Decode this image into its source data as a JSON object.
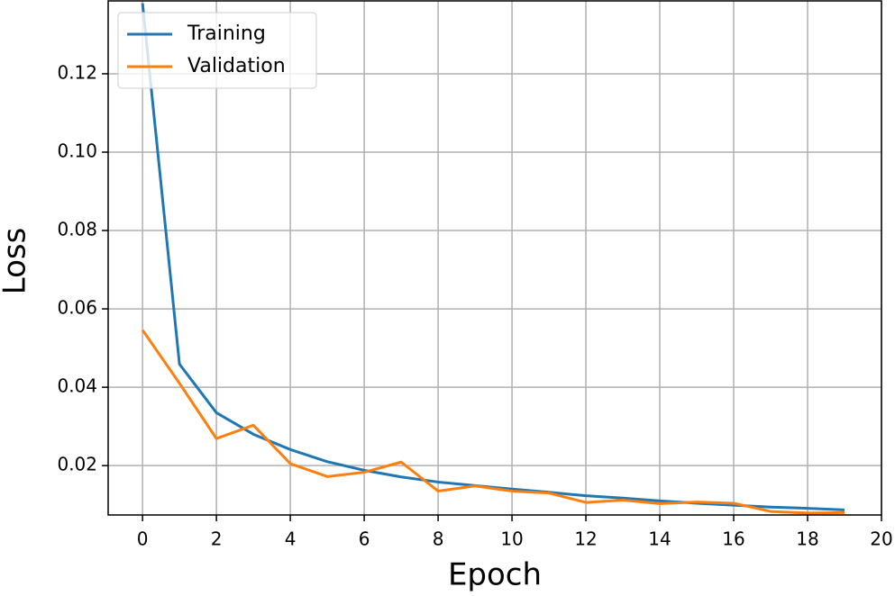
{
  "chart_data": {
    "type": "line",
    "x_label": "Epoch",
    "y_label": "Loss",
    "x": [
      0,
      1,
      2,
      3,
      4,
      5,
      6,
      7,
      8,
      9,
      10,
      11,
      12,
      13,
      14,
      15,
      16,
      17,
      18,
      19
    ],
    "series": [
      {
        "name": "Training",
        "color": "#1f77b4",
        "values": [
          0.138,
          0.0459,
          0.0335,
          0.028,
          0.0241,
          0.021,
          0.0188,
          0.0171,
          0.0158,
          0.0149,
          0.014,
          0.0132,
          0.0123,
          0.0117,
          0.011,
          0.0104,
          0.0099,
          0.0094,
          0.0091,
          0.0087
        ]
      },
      {
        "name": "Validation",
        "color": "#ff7f0e",
        "values": [
          0.0546,
          0.041,
          0.0269,
          0.0303,
          0.0205,
          0.0172,
          0.0183,
          0.0209,
          0.0135,
          0.0148,
          0.0135,
          0.013,
          0.0106,
          0.0112,
          0.0103,
          0.0107,
          0.0104,
          0.0083,
          0.0079,
          0.008
        ]
      }
    ],
    "xlim": [
      -0.93,
      20
    ],
    "ylim": [
      0.0074,
      0.1386
    ],
    "xticks": [
      0,
      2,
      4,
      6,
      8,
      10,
      12,
      14,
      16,
      18,
      20
    ],
    "yticks": [
      0.02,
      0.04,
      0.06,
      0.08,
      {
        "value": 0.1,
        "label": "0.10"
      },
      0.12
    ],
    "grid": true,
    "legend": "upper-left"
  }
}
